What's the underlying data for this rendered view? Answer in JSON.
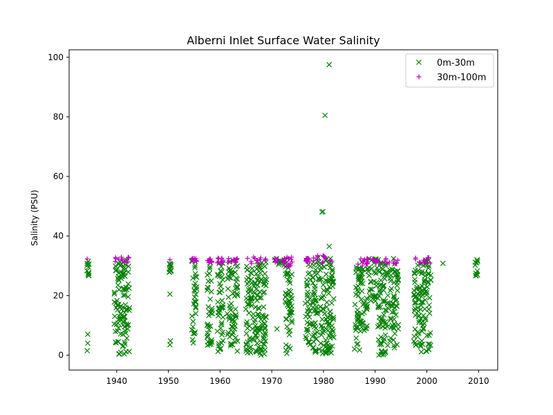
{
  "chart_data": {
    "type": "scatter",
    "title": "Alberni Inlet Surface Water Salinity",
    "xlabel": "",
    "ylabel": "Salinity (PSU)",
    "xlim": [
      1930.8,
      2013.7
    ],
    "ylim": [
      -5,
      102.5
    ],
    "x_ticks": [
      1940,
      1950,
      1960,
      1970,
      1980,
      1990,
      2000,
      2010
    ],
    "y_ticks": [
      0,
      20,
      40,
      60,
      80,
      100
    ],
    "grid": false,
    "legend_position": "top-right",
    "series": [
      {
        "name": "0m-30m",
        "marker": "x",
        "color": "#008000",
        "clusters": [
          {
            "x": [
              1934.2,
              1934.7
            ],
            "y": [
              25.5,
              31.5
            ]
          },
          {
            "x": [
              1939.5,
              1942.5
            ],
            "y": [
              0.2,
              32.0
            ]
          },
          {
            "x": [
              1950.1,
              1950.6
            ],
            "y": [
              27.5,
              31.0
            ]
          },
          {
            "x": [
              1954.5,
              1955.5
            ],
            "y": [
              4.0,
              32.0
            ]
          },
          {
            "x": [
              1957.5,
              1958.5
            ],
            "y": [
              2.0,
              31.5
            ]
          },
          {
            "x": [
              1959.4,
              1960.6
            ],
            "y": [
              1.0,
              32.0
            ]
          },
          {
            "x": [
              1961.4,
              1962.6
            ],
            "y": [
              3.0,
              32.0
            ]
          },
          {
            "x": [
              1962.6,
              1963.4
            ],
            "y": [
              1.0,
              31.0
            ]
          },
          {
            "x": [
              1965.0,
              1969.0
            ],
            "y": [
              0.0,
              32.5
            ]
          },
          {
            "x": [
              1970.5,
              1972.5
            ],
            "y": [
              30.0,
              32.5
            ]
          },
          {
            "x": [
              1972.6,
              1974.0
            ],
            "y": [
              0.5,
              32.0
            ]
          },
          {
            "x": [
              1976.5,
              1977.5
            ],
            "y": [
              2.0,
              31.5
            ]
          },
          {
            "x": [
              1977.8,
              1982.0
            ],
            "y": [
              0.5,
              33.0
            ]
          },
          {
            "x": [
              1986.0,
              1987.0
            ],
            "y": [
              1.5,
              32.0
            ]
          },
          {
            "x": [
              1987.0,
              1988.5
            ],
            "y": [
              8.0,
              32.0
            ]
          },
          {
            "x": [
              1988.5,
              1990.5
            ],
            "y": [
              18.0,
              32.5
            ]
          },
          {
            "x": [
              1990.5,
              1992.5
            ],
            "y": [
              0.0,
              32.5
            ]
          },
          {
            "x": [
              1992.8,
              1994.5
            ],
            "y": [
              2.0,
              32.5
            ]
          },
          {
            "x": [
              1997.5,
              1998.8
            ],
            "y": [
              0.5,
              32.0
            ]
          },
          {
            "x": [
              1998.8,
              2000.8
            ],
            "y": [
              1.0,
              32.0
            ]
          },
          {
            "x": [
              2009.3,
              2009.9
            ],
            "y": [
              26.0,
              32.0
            ]
          }
        ],
        "points": [
          {
            "x": 1934.3,
            "y": 1.5
          },
          {
            "x": 1934.4,
            "y": 4.0
          },
          {
            "x": 1934.4,
            "y": 7.0
          },
          {
            "x": 1950.3,
            "y": 3.5
          },
          {
            "x": 1950.4,
            "y": 4.8
          },
          {
            "x": 1950.3,
            "y": 20.5
          },
          {
            "x": 1976.9,
            "y": 19.5
          },
          {
            "x": 1971.0,
            "y": 8.8
          },
          {
            "x": 1979.7,
            "y": 48.0
          },
          {
            "x": 1979.9,
            "y": 48.2
          },
          {
            "x": 1980.3,
            "y": 80.5
          },
          {
            "x": 1981.1,
            "y": 97.5
          },
          {
            "x": 1981.1,
            "y": 36.5
          },
          {
            "x": 2003.1,
            "y": 30.8
          }
        ]
      },
      {
        "name": "30m-100m",
        "marker": "+",
        "color": "#bf00bf",
        "clusters": [
          {
            "x": [
              1939.5,
              1942.5
            ],
            "y": [
              31.0,
              33.0
            ]
          },
          {
            "x": [
              1954.5,
              1955.5
            ],
            "y": [
              31.0,
              32.5
            ]
          },
          {
            "x": [
              1957.5,
              1958.5
            ],
            "y": [
              31.0,
              32.5
            ]
          },
          {
            "x": [
              1959.4,
              1960.6
            ],
            "y": [
              31.0,
              33.0
            ]
          },
          {
            "x": [
              1961.4,
              1963.4
            ],
            "y": [
              31.0,
              32.5
            ]
          },
          {
            "x": [
              1965.0,
              1969.0
            ],
            "y": [
              30.5,
              33.0
            ]
          },
          {
            "x": [
              1970.5,
              1972.5
            ],
            "y": [
              31.0,
              32.5
            ]
          },
          {
            "x": [
              1972.6,
              1974.0
            ],
            "y": [
              29.5,
              33.0
            ]
          },
          {
            "x": [
              1976.5,
              1977.5
            ],
            "y": [
              31.0,
              32.5
            ]
          },
          {
            "x": [
              1977.8,
              1982.0
            ],
            "y": [
              30.5,
              33.5
            ]
          },
          {
            "x": [
              1986.0,
              1988.5
            ],
            "y": [
              30.0,
              32.5
            ]
          },
          {
            "x": [
              1988.5,
              1990.5
            ],
            "y": [
              31.0,
              32.5
            ]
          },
          {
            "x": [
              1990.5,
              1994.5
            ],
            "y": [
              30.5,
              33.0
            ]
          },
          {
            "x": [
              1997.5,
              2000.8
            ],
            "y": [
              30.5,
              33.0
            ]
          }
        ],
        "points": [
          {
            "x": 1934.3,
            "y": 32.3
          },
          {
            "x": 1950.3,
            "y": 32.0
          },
          {
            "x": 1955.0,
            "y": 32.5
          }
        ]
      }
    ]
  }
}
